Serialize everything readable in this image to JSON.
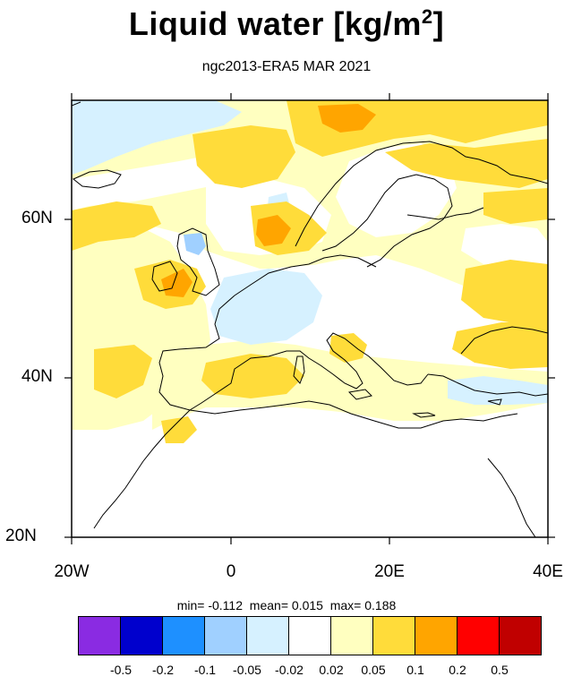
{
  "title": "Liquid water  [kg/m",
  "title_sup": "2",
  "title_tail": "]",
  "subtitle": "ngc2013-ERA5 MAR 2021",
  "axes": {
    "lat_labels": [
      "60N",
      "40N",
      "20N"
    ],
    "lon_labels": [
      "20W",
      "0",
      "20E",
      "40E"
    ]
  },
  "stats": {
    "min_label": "min=",
    "min": "-0.112",
    "mean_label": "mean=",
    "mean": "0.015",
    "max_label": "max=",
    "max": "0.188"
  },
  "colorbar": {
    "colors": [
      "#8a2be2",
      "#0000cd",
      "#1e90ff",
      "#a0d0ff",
      "#d6f1ff",
      "#ffffff",
      "#ffffc0",
      "#ffdc3a",
      "#ffa500",
      "#ff0000",
      "#c00000"
    ],
    "labels": [
      "-0.5",
      "-0.2",
      "-0.1",
      "-0.05",
      "-0.02",
      "0.02",
      "0.05",
      "0.1",
      "0.2",
      "0.5"
    ]
  },
  "map_colors": {
    "bg": "#ffffff",
    "yellow_light": "#ffffc0",
    "yellow": "#ffdc3a",
    "orange": "#ffa500",
    "blue_light": "#d6f1ff",
    "blue": "#a0d0ff",
    "coast": "#000000"
  }
}
